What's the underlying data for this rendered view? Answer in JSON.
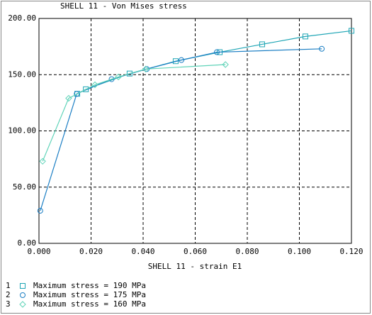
{
  "chart_data": {
    "type": "line",
    "title": "SHELL 11 - Von Mises stress",
    "x_label": "SHELL 11 - strain E1",
    "xlim": [
      0,
      0.12
    ],
    "xticks": [
      {
        "value": 0,
        "label": "0.000"
      },
      {
        "value": 0.02,
        "label": "0.020"
      },
      {
        "value": 0.04,
        "label": "0.040"
      },
      {
        "value": 0.06,
        "label": "0.060"
      },
      {
        "value": 0.08,
        "label": "0.080"
      },
      {
        "value": 0.1,
        "label": "0.100"
      },
      {
        "value": 0.12,
        "label": "0.120"
      }
    ],
    "ylim": [
      0,
      200
    ],
    "yticks": [
      {
        "value": 0,
        "label": "0.00"
      },
      {
        "value": 50,
        "label": "50.00"
      },
      {
        "value": 100,
        "label": "100.00"
      },
      {
        "value": 150,
        "label": "150.00"
      },
      {
        "value": 200,
        "label": "200.00"
      }
    ],
    "grid": true,
    "series": [
      {
        "key": "1",
        "name": "Maximum stress = 190 MPa",
        "color": "#1ea5b5",
        "marker": "square",
        "x": [
          0.0147,
          0.018,
          0.0348,
          0.0525,
          0.0694,
          0.0857,
          0.1023,
          0.12
        ],
        "values": [
          133,
          137,
          151,
          162,
          170,
          177,
          184,
          189
        ]
      },
      {
        "key": "2",
        "name": "Maximum stress = 175 MPa",
        "color": "#1c7fc4",
        "marker": "circle",
        "x": [
          0.0005,
          0.0145,
          0.0279,
          0.0414,
          0.0547,
          0.0683,
          0.1086
        ],
        "values": [
          29,
          133,
          146,
          155,
          163,
          170,
          173
        ]
      },
      {
        "key": "3",
        "name": "Maximum stress = 160 MPa",
        "color": "#5fd3b8",
        "marker": "diamond",
        "x": [
          0.0014,
          0.0114,
          0.0215,
          0.0305,
          0.041,
          0.0716
        ],
        "values": [
          73,
          129,
          141,
          148,
          155,
          159
        ]
      }
    ]
  }
}
